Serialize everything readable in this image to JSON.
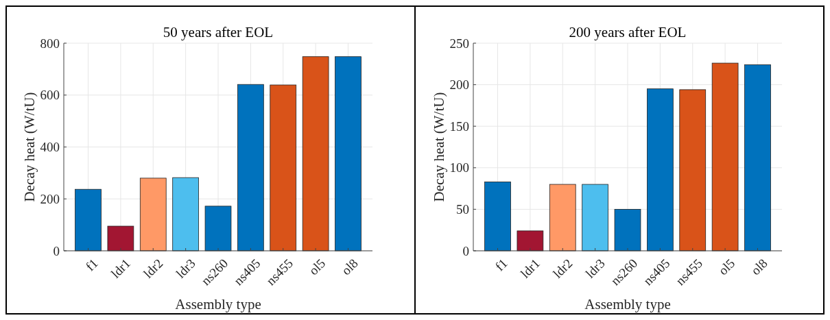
{
  "chart_data": [
    {
      "type": "bar",
      "title": "50 years after EOL",
      "xlabel": "Assembly type",
      "ylabel": "Decay heat (W/tU)",
      "categories": [
        "f1",
        "ldr1",
        "ldr2",
        "ldr3",
        "ns260",
        "ns405",
        "ns455",
        "ol5",
        "ol8"
      ],
      "values": [
        237,
        95,
        280,
        282,
        172,
        641,
        639,
        748,
        748
      ],
      "colors": [
        "#0072bd",
        "#a21632",
        "#ff9966",
        "#4dbeee",
        "#0072bd",
        "#0072bd",
        "#d95319",
        "#d95319",
        "#0072bd"
      ],
      "ylim": [
        0,
        800
      ],
      "yticks": [
        0,
        200,
        400,
        600,
        800
      ],
      "grid": true
    },
    {
      "type": "bar",
      "title": "200 years after EOL",
      "xlabel": "Assembly type",
      "ylabel": "Decay heat (W/tU)",
      "categories": [
        "f1",
        "ldr1",
        "ldr2",
        "ldr3",
        "ns260",
        "ns405",
        "ns455",
        "ol5",
        "ol8"
      ],
      "values": [
        83,
        24,
        80,
        80,
        50,
        195,
        194,
        226,
        224
      ],
      "colors": [
        "#0072bd",
        "#a21632",
        "#ff9966",
        "#4dbeee",
        "#0072bd",
        "#0072bd",
        "#d95319",
        "#d95319",
        "#0072bd"
      ],
      "ylim": [
        0,
        250
      ],
      "yticks": [
        0,
        50,
        100,
        150,
        200,
        250
      ],
      "grid": true
    }
  ]
}
